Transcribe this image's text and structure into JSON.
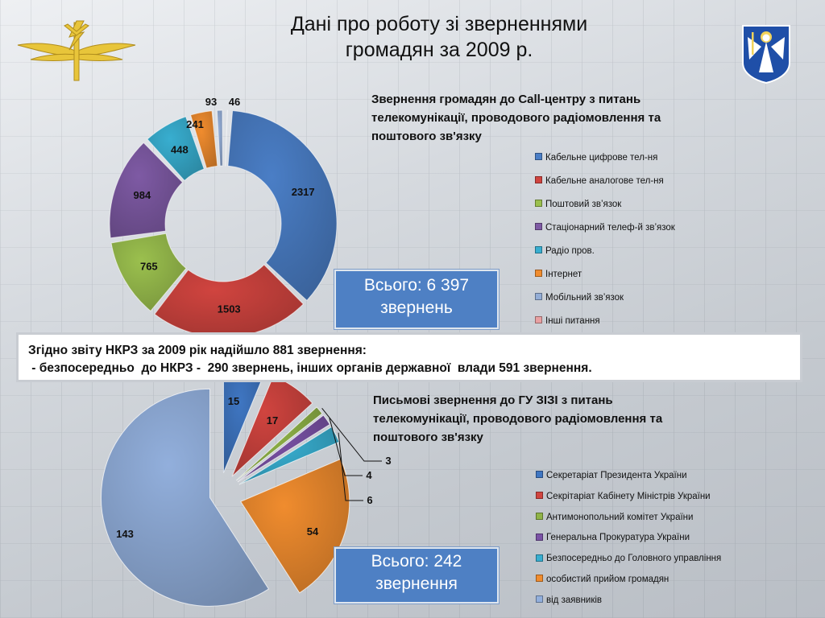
{
  "title": "Дані про роботу зі зверненнями\nгромадян за 2009 р.",
  "header": {
    "left_logo_icon": "winged-lightning-emblem-icon",
    "right_logo_icon": "kyiv-coat-of-arms-icon"
  },
  "note": {
    "line1": "Згідно звіту НКРЗ за 2009 рік надійшло 881 звернення:",
    "line2": " - безпосередньо  до НКРЗ -  290 звернень, інших органів державної  влади 591 звернення."
  },
  "chart_data": [
    {
      "type": "pie",
      "variant": "doughnut",
      "title": "Звернення громадян до Call-центру з питань телекомунікації, проводового радіомовлення та поштового зв'язку",
      "categories": [
        "Кабельне цифрове  тел-ня",
        "Кабельне  аналогове тел-ня",
        "Поштовий  зв’язок",
        "Стаціонарний телеф-й зв’язок",
        "Радіо пров.",
        "Інтернет",
        "Мобільний зв’язок",
        "Інші питання"
      ],
      "values": [
        2317,
        1503,
        765,
        984,
        448,
        241,
        93,
        46
      ],
      "colors": [
        "#4a7ec6",
        "#d0443f",
        "#9bc04e",
        "#7e5aa4",
        "#38aed0",
        "#f08c2e",
        "#93add6",
        "#e8a0a2"
      ],
      "total_label": "Всього: 6 397\nзвернень",
      "legend_position": "right"
    },
    {
      "type": "pie",
      "title": "Письмові звернення до ГУ ЗІЗІ з питань телекомунікації, проводового радіомовлення та поштового зв'язку",
      "categories": [
        "Секретаріат Президента України",
        "Секрітаріат Кабінету Міністрів України",
        "Антимонопольний комітет України",
        "Генеральна Прокуратура України",
        "Безпосередньо до Головного управління",
        "особистий прийом громадян",
        "від заявників"
      ],
      "values": [
        15,
        17,
        3,
        4,
        6,
        54,
        143
      ],
      "colors": [
        "#3f76c2",
        "#d0443f",
        "#8fb347",
        "#7a52a6",
        "#38aed0",
        "#f08c2e",
        "#92afdc"
      ],
      "total_label": "Всього: 242\nзвернення",
      "legend_position": "right"
    }
  ]
}
